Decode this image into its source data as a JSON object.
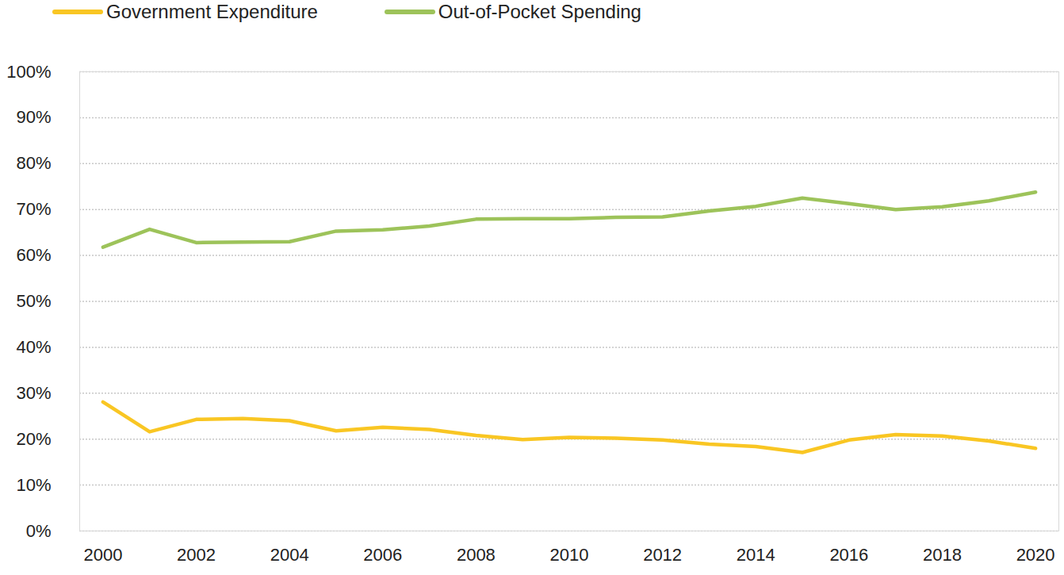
{
  "chart_data": {
    "type": "line",
    "x": [
      2000,
      2001,
      2002,
      2003,
      2004,
      2005,
      2006,
      2007,
      2008,
      2009,
      2010,
      2011,
      2012,
      2013,
      2014,
      2015,
      2016,
      2017,
      2018,
      2019,
      2020
    ],
    "series": [
      {
        "name": "Government Expenditure",
        "color": "#f9c623",
        "marker": "none",
        "line_style": "solid",
        "values": [
          28.1,
          21.6,
          24.3,
          24.5,
          24.0,
          21.8,
          22.6,
          22.1,
          20.8,
          19.9,
          20.4,
          20.2,
          19.8,
          18.9,
          18.4,
          17.1,
          19.8,
          21.0,
          20.7,
          19.6,
          18.0
        ]
      },
      {
        "name": "Out-of-Pocket Spending",
        "color": "#9dc35a",
        "marker": "none",
        "line_style": "solid",
        "values": [
          61.8,
          65.7,
          62.8,
          62.9,
          63.0,
          65.3,
          65.6,
          66.4,
          67.9,
          68.0,
          68.0,
          68.3,
          68.4,
          69.7,
          70.7,
          72.5,
          71.3,
          70.0,
          70.6,
          71.9,
          73.8
        ]
      }
    ],
    "xlim": [
      1999.5,
      2020.5
    ],
    "xticks": [
      2000,
      2002,
      2004,
      2006,
      2008,
      2010,
      2012,
      2014,
      2016,
      2018,
      2020
    ],
    "ylim": [
      0,
      100
    ],
    "yticks": [
      {
        "value": 0,
        "label": "0%"
      },
      {
        "value": 10,
        "label": "10%"
      },
      {
        "value": 20,
        "label": "20%"
      },
      {
        "value": 30,
        "label": "30%"
      },
      {
        "value": 40,
        "label": "40%"
      },
      {
        "value": 50,
        "label": "50%"
      },
      {
        "value": 60,
        "label": "60%"
      },
      {
        "value": 70,
        "label": "70%"
      },
      {
        "value": 80,
        "label": "80%"
      },
      {
        "value": 90,
        "label": "90%"
      },
      {
        "value": 100,
        "label": "100%"
      }
    ],
    "grid": true,
    "legend": "top-left"
  }
}
